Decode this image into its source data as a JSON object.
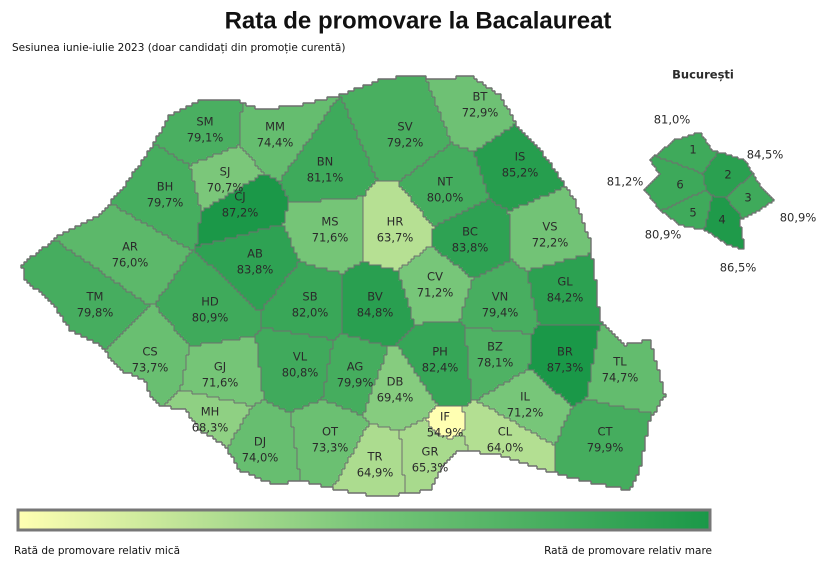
{
  "title": "Rata de promovare la Bacalaureat",
  "subtitle": "Sesiunea iunie-iulie 2023 (doar candidați din promoție curentă)",
  "regions": [
    {
      "code": "SM",
      "value": 79.1,
      "value_label": "79,1%"
    },
    {
      "code": "MM",
      "value": 74.4,
      "value_label": "74,4%"
    },
    {
      "code": "BN",
      "value": 81.1,
      "value_label": "81,1%"
    },
    {
      "code": "SV",
      "value": 79.2,
      "value_label": "79,2%"
    },
    {
      "code": "BT",
      "value": 72.9,
      "value_label": "72,9%"
    },
    {
      "code": "IS",
      "value": 85.2,
      "value_label": "85,2%"
    },
    {
      "code": "NT",
      "value": 80.0,
      "value_label": "80,0%"
    },
    {
      "code": "BH",
      "value": 79.7,
      "value_label": "79,7%"
    },
    {
      "code": "SJ",
      "value": 70.7,
      "value_label": "70,7%"
    },
    {
      "code": "CJ",
      "value": 87.2,
      "value_label": "87,2%"
    },
    {
      "code": "MS",
      "value": 71.6,
      "value_label": "71,6%"
    },
    {
      "code": "HR",
      "value": 63.7,
      "value_label": "63,7%"
    },
    {
      "code": "BC",
      "value": 83.8,
      "value_label": "83,8%"
    },
    {
      "code": "VS",
      "value": 72.2,
      "value_label": "72,2%"
    },
    {
      "code": "AR",
      "value": 76.0,
      "value_label": "76,0%"
    },
    {
      "code": "AB",
      "value": 83.8,
      "value_label": "83,8%"
    },
    {
      "code": "TM",
      "value": 79.8,
      "value_label": "79,8%"
    },
    {
      "code": "HD",
      "value": 80.9,
      "value_label": "80,9%"
    },
    {
      "code": "SB",
      "value": 82.0,
      "value_label": "82,0%"
    },
    {
      "code": "BV",
      "value": 84.8,
      "value_label": "84,8%"
    },
    {
      "code": "CV",
      "value": 71.2,
      "value_label": "71,2%"
    },
    {
      "code": "VN",
      "value": 79.4,
      "value_label": "79,4%"
    },
    {
      "code": "GL",
      "value": 84.2,
      "value_label": "84,2%"
    },
    {
      "code": "CS",
      "value": 73.7,
      "value_label": "73,7%"
    },
    {
      "code": "GJ",
      "value": 71.6,
      "value_label": "71,6%"
    },
    {
      "code": "VL",
      "value": 80.8,
      "value_label": "80,8%"
    },
    {
      "code": "AG",
      "value": 79.9,
      "value_label": "79,9%"
    },
    {
      "code": "DB",
      "value": 69.4,
      "value_label": "69,4%"
    },
    {
      "code": "PH",
      "value": 82.4,
      "value_label": "82,4%"
    },
    {
      "code": "BZ",
      "value": 78.1,
      "value_label": "78,1%"
    },
    {
      "code": "BR",
      "value": 87.3,
      "value_label": "87,3%"
    },
    {
      "code": "TL",
      "value": 74.7,
      "value_label": "74,7%"
    },
    {
      "code": "MH",
      "value": 68.3,
      "value_label": "68,3%"
    },
    {
      "code": "DJ",
      "value": 74.0,
      "value_label": "74,0%"
    },
    {
      "code": "OT",
      "value": 73.3,
      "value_label": "73,3%"
    },
    {
      "code": "TR",
      "value": 64.9,
      "value_label": "64,9%"
    },
    {
      "code": "GR",
      "value": 65.3,
      "value_label": "65,3%"
    },
    {
      "code": "IF",
      "value": 54.9,
      "value_label": "54,9%"
    },
    {
      "code": "IL",
      "value": 71.2,
      "value_label": "71,2%"
    },
    {
      "code": "CL",
      "value": 64.0,
      "value_label": "64,0%"
    },
    {
      "code": "CT",
      "value": 79.9,
      "value_label": "79,9%"
    }
  ],
  "bucharest": {
    "title": "București",
    "sectors": [
      {
        "label": "1",
        "value": 81.0,
        "value_label": "81,0%"
      },
      {
        "label": "2",
        "value": 84.5,
        "value_label": "84,5%"
      },
      {
        "label": "3",
        "value": 80.9,
        "value_label": "80,9%"
      },
      {
        "label": "4",
        "value": 86.5,
        "value_label": "86,5%"
      },
      {
        "label": "5",
        "value": 80.9,
        "value_label": "80,9%"
      },
      {
        "label": "6",
        "value": 81.2,
        "value_label": "81,2%"
      }
    ]
  },
  "legend": {
    "low": "Rată de promovare relativ mică",
    "high": "Rată de promovare relativ mare"
  }
}
